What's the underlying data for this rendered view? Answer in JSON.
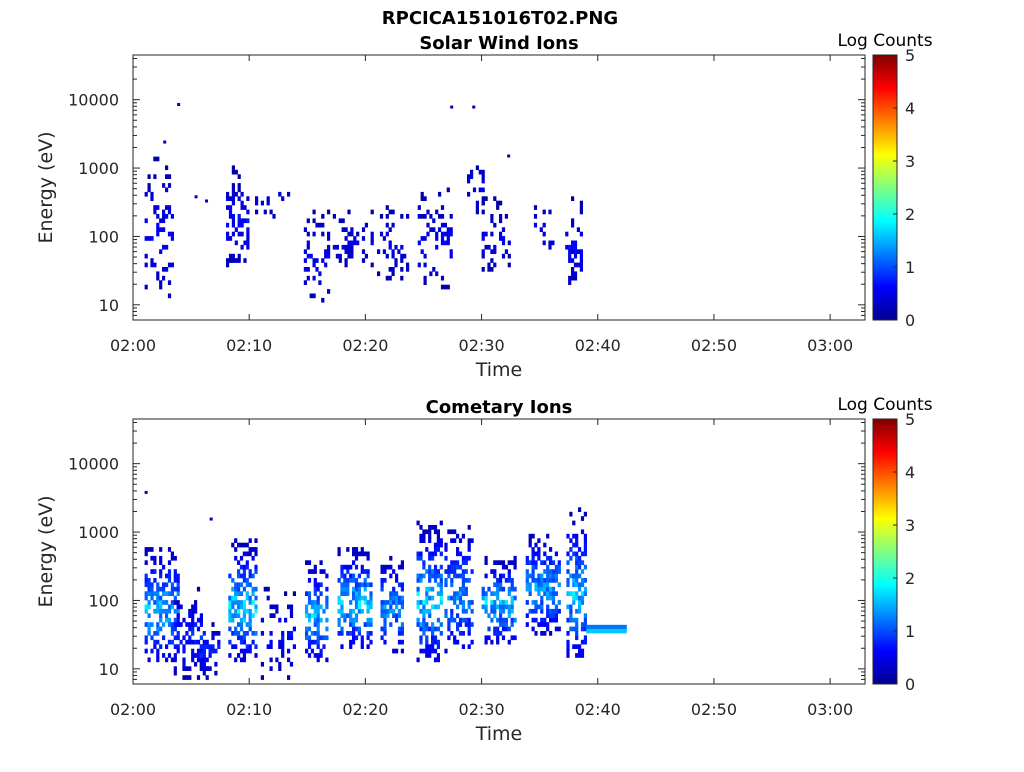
{
  "figure": {
    "title": "RPCICA151016T02.PNG"
  },
  "colors": {
    "axis": "#262626",
    "background": "#ffffff"
  },
  "chart_data": [
    {
      "type": "heatmap",
      "title": "Solar Wind Ions",
      "xlabel": "Time",
      "ylabel": "Energy (eV)",
      "x_ticks": [
        "02:00",
        "02:10",
        "02:20",
        "02:30",
        "02:40",
        "02:50",
        "03:00"
      ],
      "x_range_minutes": [
        0,
        63
      ],
      "y_scale": "log",
      "y_range": [
        6,
        45000
      ],
      "y_ticks": [
        "10",
        "100",
        "1000",
        "10000"
      ],
      "colorbar": {
        "label": "Log Counts",
        "range": [
          0,
          5
        ],
        "ticks": [
          "0",
          "1",
          "2",
          "3",
          "4",
          "5"
        ],
        "colormap": "jet"
      },
      "blobs": [
        {
          "t0": 1.0,
          "t1": 3.5,
          "e0": 12,
          "e1": 1500,
          "c0": 0.2,
          "c1": 0.7,
          "density": 0.3
        },
        {
          "t0": 8.0,
          "t1": 10.0,
          "e0": 38,
          "e1": 1000,
          "c0": 0.2,
          "c1": 0.8,
          "density": 0.45
        },
        {
          "t0": 10.5,
          "t1": 13.5,
          "e0": 150,
          "e1": 600,
          "c0": 0.2,
          "c1": 0.5,
          "density": 0.15
        },
        {
          "t0": 14.7,
          "t1": 16.8,
          "e0": 12,
          "e1": 250,
          "c0": 0.2,
          "c1": 0.7,
          "density": 0.3
        },
        {
          "t0": 17.2,
          "t1": 20.5,
          "e0": 35,
          "e1": 220,
          "c0": 0.2,
          "c1": 0.6,
          "density": 0.3
        },
        {
          "t0": 21.0,
          "t1": 23.7,
          "e0": 25,
          "e1": 250,
          "c0": 0.2,
          "c1": 0.6,
          "density": 0.25
        },
        {
          "t0": 24.5,
          "t1": 27.5,
          "e0": 18,
          "e1": 450,
          "c0": 0.2,
          "c1": 0.7,
          "density": 0.35
        },
        {
          "t0": 28.5,
          "t1": 30.5,
          "e0": 200,
          "e1": 1400,
          "c0": 0.2,
          "c1": 0.6,
          "density": 0.25
        },
        {
          "t0": 30.0,
          "t1": 32.5,
          "e0": 30,
          "e1": 350,
          "c0": 0.2,
          "c1": 0.6,
          "density": 0.3
        },
        {
          "t0": 34.5,
          "t1": 36.2,
          "e0": 45,
          "e1": 350,
          "c0": 0.2,
          "c1": 0.6,
          "density": 0.25
        },
        {
          "t0": 37.2,
          "t1": 38.5,
          "e0": 18,
          "e1": 350,
          "c0": 0.2,
          "c1": 0.7,
          "density": 0.45
        }
      ],
      "scatter": [
        [
          3.8,
          8500
        ],
        [
          27.3,
          7800
        ],
        [
          29.2,
          7800
        ],
        [
          2.6,
          2400
        ],
        [
          32.2,
          1500
        ],
        [
          5.3,
          380
        ],
        [
          6.2,
          330
        ]
      ]
    },
    {
      "type": "heatmap",
      "title": "Cometary Ions",
      "xlabel": "Time",
      "ylabel": "Energy (eV)",
      "x_ticks": [
        "02:00",
        "02:10",
        "02:20",
        "02:30",
        "02:40",
        "02:50",
        "03:00"
      ],
      "x_range_minutes": [
        0,
        63
      ],
      "y_scale": "log",
      "y_range": [
        6,
        45000
      ],
      "y_ticks": [
        "10",
        "100",
        "1000",
        "10000"
      ],
      "colorbar": {
        "label": "Log Counts",
        "range": [
          0,
          5
        ],
        "ticks": [
          "0",
          "1",
          "2",
          "3",
          "4",
          "5"
        ],
        "colormap": "jet"
      },
      "blobs": [
        {
          "t0": 1.0,
          "t1": 3.8,
          "e0": 14,
          "e1": 600,
          "c0": 0.3,
          "c1": 1.9,
          "density": 0.7
        },
        {
          "t0": 3.5,
          "t1": 6.5,
          "e0": 8,
          "e1": 150,
          "c0": 0.2,
          "c1": 1.0,
          "density": 0.45
        },
        {
          "t0": 5.5,
          "t1": 7.5,
          "e0": 8,
          "e1": 45,
          "c0": 0.2,
          "c1": 1.0,
          "density": 0.55
        },
        {
          "t0": 8.2,
          "t1": 10.5,
          "e0": 14,
          "e1": 700,
          "c0": 0.3,
          "c1": 2.1,
          "density": 0.75
        },
        {
          "t0": 11.0,
          "t1": 13.8,
          "e0": 8,
          "e1": 150,
          "c0": 0.2,
          "c1": 0.8,
          "density": 0.3
        },
        {
          "t0": 14.8,
          "t1": 16.8,
          "e0": 14,
          "e1": 350,
          "c0": 0.3,
          "c1": 1.9,
          "density": 0.7
        },
        {
          "t0": 17.6,
          "t1": 20.5,
          "e0": 20,
          "e1": 600,
          "c0": 0.3,
          "c1": 2.0,
          "density": 0.75
        },
        {
          "t0": 21.3,
          "t1": 23.3,
          "e0": 18,
          "e1": 400,
          "c0": 0.3,
          "c1": 1.7,
          "density": 0.7
        },
        {
          "t0": 24.4,
          "t1": 26.5,
          "e0": 14,
          "e1": 1300,
          "c0": 0.3,
          "c1": 2.1,
          "density": 0.7
        },
        {
          "t0": 26.8,
          "t1": 29.2,
          "e0": 18,
          "e1": 1200,
          "c0": 0.3,
          "c1": 1.6,
          "density": 0.6
        },
        {
          "t0": 30.0,
          "t1": 33.0,
          "e0": 25,
          "e1": 400,
          "c0": 0.3,
          "c1": 2.0,
          "density": 0.75
        },
        {
          "t0": 33.8,
          "t1": 36.8,
          "e0": 35,
          "e1": 900,
          "c0": 0.3,
          "c1": 1.8,
          "density": 0.7
        },
        {
          "t0": 37.3,
          "t1": 39.0,
          "e0": 15,
          "e1": 2000,
          "c0": 0.3,
          "c1": 1.9,
          "density": 0.7
        }
      ],
      "bands": [
        {
          "t0": 39.0,
          "t1": 42.5,
          "e0": 33,
          "e1": 38,
          "c": 1.6
        },
        {
          "t0": 39.0,
          "t1": 42.5,
          "e0": 38,
          "e1": 44,
          "c": 1.2
        }
      ],
      "scatter": [
        [
          1.0,
          3800
        ],
        [
          6.6,
          1550
        ]
      ]
    }
  ]
}
